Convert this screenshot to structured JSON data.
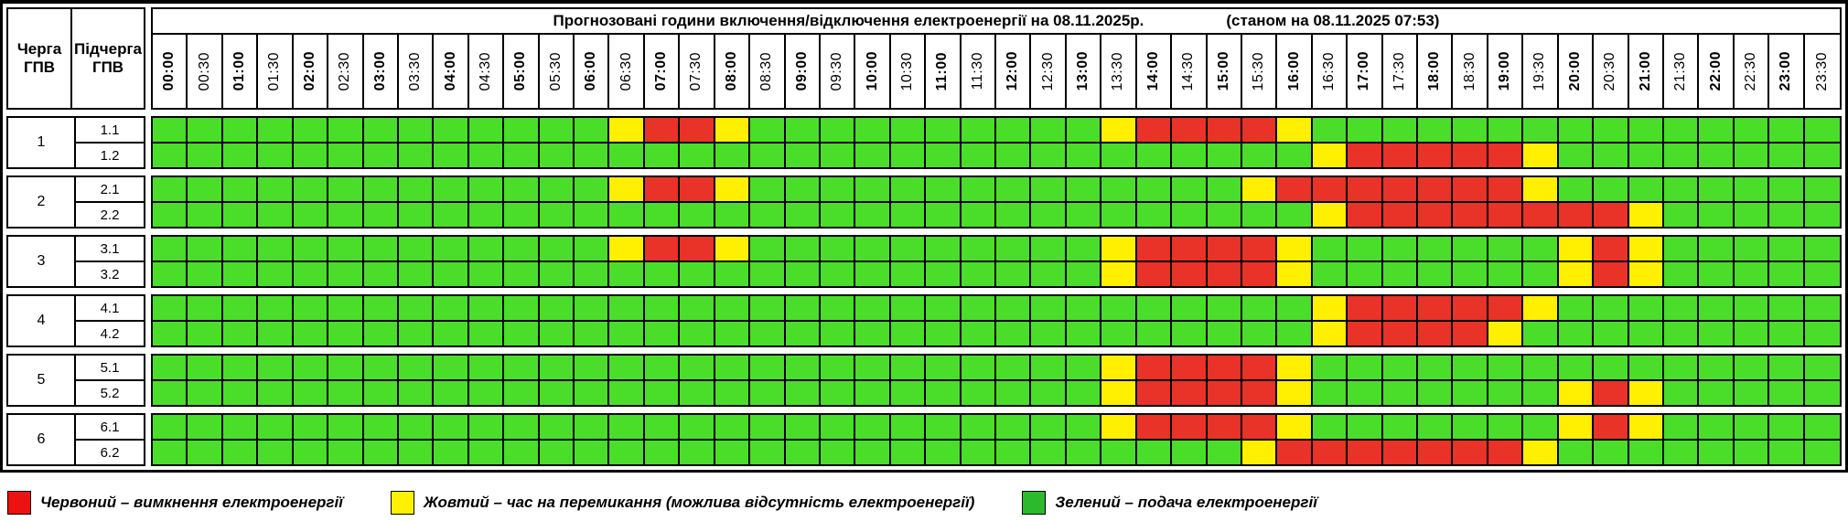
{
  "header": {
    "queue_col": "Черга ГПВ",
    "subqueue_col": "Підчерга ГПВ"
  },
  "chart_data": {
    "type": "heatmap",
    "title": "Прогнозовані години включення/відключення електроенергії на 08.11.2025р.",
    "status": "(станом на 08.11.2025 07:53)",
    "x_labels": [
      "00:00",
      "00:30",
      "01:00",
      "01:30",
      "02:00",
      "02:30",
      "03:00",
      "03:30",
      "04:00",
      "04:30",
      "05:00",
      "05:30",
      "06:00",
      "06:30",
      "07:00",
      "07:30",
      "08:00",
      "08:30",
      "09:00",
      "09:30",
      "10:00",
      "10:30",
      "11:00",
      "11:30",
      "12:00",
      "12:30",
      "13:00",
      "13:30",
      "14:00",
      "14:30",
      "15:00",
      "15:30",
      "16:00",
      "16:30",
      "17:00",
      "17:30",
      "18:00",
      "18:30",
      "19:00",
      "19:30",
      "20:00",
      "20:30",
      "21:00",
      "21:30",
      "22:00",
      "22:30",
      "23:00",
      "23:30"
    ],
    "cell_colors": {
      "G": "#4ade2b",
      "Y": "#ffef00",
      "R": "#e93228"
    },
    "meaning": {
      "G": "подача електроенергії",
      "Y": "час на перемикання (можлива відсутність електроенергії)",
      "R": "вимкнення електроенергії"
    },
    "groups": [
      {
        "queue": "1",
        "rows": [
          {
            "label": "1.1",
            "segments": [
              [
                "G",
                13
              ],
              [
                "Y",
                1
              ],
              [
                "R",
                2
              ],
              [
                "Y",
                1
              ],
              [
                "G",
                10
              ],
              [
                "Y",
                1
              ],
              [
                "R",
                4
              ],
              [
                "Y",
                1
              ],
              [
                "G",
                15
              ]
            ]
          },
          {
            "label": "1.2",
            "segments": [
              [
                "G",
                33
              ],
              [
                "Y",
                1
              ],
              [
                "R",
                5
              ],
              [
                "Y",
                1
              ],
              [
                "G",
                8
              ]
            ]
          }
        ]
      },
      {
        "queue": "2",
        "rows": [
          {
            "label": "2.1",
            "segments": [
              [
                "G",
                13
              ],
              [
                "Y",
                1
              ],
              [
                "R",
                2
              ],
              [
                "Y",
                1
              ],
              [
                "G",
                14
              ],
              [
                "Y",
                1
              ],
              [
                "R",
                7
              ],
              [
                "Y",
                1
              ],
              [
                "G",
                8
              ]
            ]
          },
          {
            "label": "2.2",
            "segments": [
              [
                "G",
                33
              ],
              [
                "Y",
                1
              ],
              [
                "R",
                8
              ],
              [
                "Y",
                1
              ],
              [
                "G",
                5
              ]
            ]
          }
        ]
      },
      {
        "queue": "3",
        "rows": [
          {
            "label": "3.1",
            "segments": [
              [
                "G",
                13
              ],
              [
                "Y",
                1
              ],
              [
                "R",
                2
              ],
              [
                "Y",
                1
              ],
              [
                "G",
                10
              ],
              [
                "Y",
                1
              ],
              [
                "R",
                4
              ],
              [
                "Y",
                1
              ],
              [
                "G",
                7
              ],
              [
                "Y",
                1
              ],
              [
                "R",
                1
              ],
              [
                "Y",
                1
              ],
              [
                "G",
                5
              ]
            ]
          },
          {
            "label": "3.2",
            "segments": [
              [
                "G",
                27
              ],
              [
                "Y",
                1
              ],
              [
                "R",
                4
              ],
              [
                "Y",
                1
              ],
              [
                "G",
                7
              ],
              [
                "Y",
                1
              ],
              [
                "R",
                1
              ],
              [
                "Y",
                1
              ],
              [
                "G",
                5
              ]
            ]
          }
        ]
      },
      {
        "queue": "4",
        "rows": [
          {
            "label": "4.1",
            "segments": [
              [
                "G",
                33
              ],
              [
                "Y",
                1
              ],
              [
                "R",
                5
              ],
              [
                "Y",
                1
              ],
              [
                "G",
                8
              ]
            ]
          },
          {
            "label": "4.2",
            "segments": [
              [
                "G",
                33
              ],
              [
                "Y",
                1
              ],
              [
                "R",
                4
              ],
              [
                "Y",
                1
              ],
              [
                "G",
                9
              ]
            ]
          }
        ]
      },
      {
        "queue": "5",
        "rows": [
          {
            "label": "5.1",
            "segments": [
              [
                "G",
                27
              ],
              [
                "Y",
                1
              ],
              [
                "R",
                4
              ],
              [
                "Y",
                1
              ],
              [
                "G",
                15
              ]
            ]
          },
          {
            "label": "5.2",
            "segments": [
              [
                "G",
                27
              ],
              [
                "Y",
                1
              ],
              [
                "R",
                4
              ],
              [
                "Y",
                1
              ],
              [
                "G",
                7
              ],
              [
                "Y",
                1
              ],
              [
                "R",
                1
              ],
              [
                "Y",
                1
              ],
              [
                "G",
                5
              ]
            ]
          }
        ]
      },
      {
        "queue": "6",
        "rows": [
          {
            "label": "6.1",
            "segments": [
              [
                "G",
                27
              ],
              [
                "Y",
                1
              ],
              [
                "R",
                4
              ],
              [
                "Y",
                1
              ],
              [
                "G",
                7
              ],
              [
                "Y",
                1
              ],
              [
                "R",
                1
              ],
              [
                "Y",
                1
              ],
              [
                "G",
                5
              ]
            ]
          },
          {
            "label": "6.2",
            "segments": [
              [
                "G",
                31
              ],
              [
                "Y",
                1
              ],
              [
                "R",
                7
              ],
              [
                "Y",
                1
              ],
              [
                "G",
                8
              ]
            ]
          }
        ]
      }
    ]
  },
  "legend": {
    "items": [
      {
        "key": "R",
        "color": "#ee1111",
        "label": "Червоний – вимкнення електроенергії"
      },
      {
        "key": "Y",
        "color": "#fdf000",
        "label": "Жовтий – час на перемикання (можлива відсутність електроенергії)"
      },
      {
        "key": "G",
        "color": "#2db92d",
        "label": "Зелений – подача електроенергії"
      }
    ]
  }
}
